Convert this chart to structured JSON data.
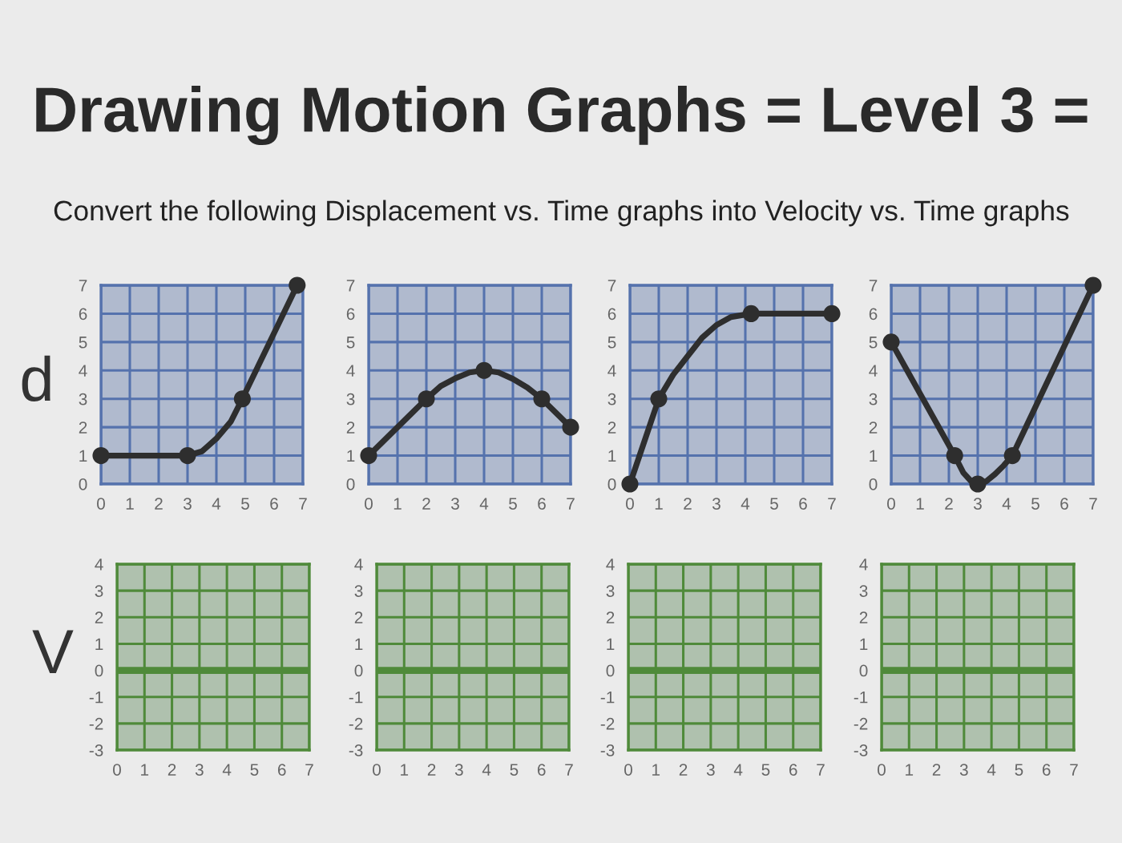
{
  "chart_data": [
    {
      "type": "line",
      "title": "Drawing Motion Graphs = Level 3 =",
      "subtitle": "Convert the following Displacement vs. Time graphs into Velocity vs. Time graphs",
      "ylabel": "d",
      "series": [
        {
          "color": "#2e2e2e",
          "x": [
            0,
            3,
            3.5,
            4,
            4.5,
            4.9,
            6.8
          ],
          "values": [
            1,
            1,
            1.15,
            1.6,
            2.2,
            3,
            7
          ]
        },
        {
          "type": "scatter",
          "marker": "circle",
          "color": "#2e2e2e",
          "x": [
            0,
            3,
            4.9,
            6.8
          ],
          "values": [
            1,
            1,
            3,
            7
          ]
        }
      ],
      "xlim": [
        0,
        7
      ],
      "ylim": [
        0,
        7
      ],
      "xticks": [
        0,
        1,
        2,
        3,
        4,
        5,
        6,
        7
      ],
      "yticks": [
        0,
        1,
        2,
        3,
        4,
        5,
        6,
        7
      ],
      "grid": true,
      "line_style": "solid"
    },
    {
      "type": "line",
      "series": [
        {
          "color": "#2e2e2e",
          "x": [
            0,
            2,
            2.5,
            3,
            3.5,
            4,
            4.5,
            5,
            5.5,
            6,
            7
          ],
          "values": [
            1,
            3,
            3.45,
            3.72,
            3.93,
            4,
            3.93,
            3.7,
            3.4,
            3,
            2
          ]
        },
        {
          "type": "scatter",
          "marker": "circle",
          "color": "#2e2e2e",
          "x": [
            0,
            2,
            4,
            6,
            7
          ],
          "values": [
            1,
            3,
            4,
            3,
            2
          ]
        }
      ],
      "xlim": [
        0,
        7
      ],
      "ylim": [
        0,
        7
      ],
      "xticks": [
        0,
        1,
        2,
        3,
        4,
        5,
        6,
        7
      ],
      "yticks": [
        0,
        1,
        2,
        3,
        4,
        5,
        6,
        7
      ],
      "grid": true,
      "line_style": "solid"
    },
    {
      "type": "line",
      "series": [
        {
          "color": "#2e2e2e",
          "x": [
            0,
            1,
            1.5,
            2,
            2.5,
            3,
            3.5,
            4.2,
            7
          ],
          "values": [
            0,
            3,
            3.85,
            4.5,
            5.15,
            5.6,
            5.88,
            6,
            6
          ]
        },
        {
          "type": "scatter",
          "marker": "circle",
          "color": "#2e2e2e",
          "x": [
            0,
            1,
            4.2,
            7
          ],
          "values": [
            0,
            3,
            6,
            6
          ]
        }
      ],
      "xlim": [
        0,
        7
      ],
      "ylim": [
        0,
        7
      ],
      "xticks": [
        0,
        1,
        2,
        3,
        4,
        5,
        6,
        7
      ],
      "yticks": [
        0,
        1,
        2,
        3,
        4,
        5,
        6,
        7
      ],
      "grid": true,
      "line_style": "solid"
    },
    {
      "type": "line",
      "series": [
        {
          "color": "#2e2e2e",
          "x": [
            0,
            2.2,
            2.5,
            2.75,
            3,
            3.3,
            3.6,
            3.9,
            4.2,
            7
          ],
          "values": [
            5,
            1,
            0.4,
            0.12,
            0,
            0.1,
            0.35,
            0.65,
            1,
            7
          ]
        },
        {
          "type": "scatter",
          "marker": "circle",
          "color": "#2e2e2e",
          "x": [
            0,
            2.2,
            3,
            4.2,
            7
          ],
          "values": [
            5,
            1,
            0,
            1,
            7
          ]
        }
      ],
      "xlim": [
        0,
        7
      ],
      "ylim": [
        0,
        7
      ],
      "xticks": [
        0,
        1,
        2,
        3,
        4,
        5,
        6,
        7
      ],
      "yticks": [
        0,
        1,
        2,
        3,
        4,
        5,
        6,
        7
      ],
      "grid": true,
      "line_style": "solid"
    },
    {
      "type": "line",
      "ylabel": "V",
      "xlim": [
        0,
        7
      ],
      "ylim": [
        -3,
        4
      ],
      "xticks": [
        0,
        1,
        2,
        3,
        4,
        5,
        6,
        7
      ],
      "yticks": [
        -3,
        -2,
        -1,
        0,
        1,
        2,
        3,
        4
      ],
      "grid": true,
      "ref_lines": [
        {
          "axis": "y",
          "value": 0,
          "color": "#4f8a3a"
        }
      ]
    },
    {
      "type": "line",
      "xlim": [
        0,
        7
      ],
      "ylim": [
        -3,
        4
      ],
      "xticks": [
        0,
        1,
        2,
        3,
        4,
        5,
        6,
        7
      ],
      "yticks": [
        -3,
        -2,
        -1,
        0,
        1,
        2,
        3,
        4
      ],
      "grid": true,
      "ref_lines": [
        {
          "axis": "y",
          "value": 0,
          "color": "#4f8a3a"
        }
      ]
    },
    {
      "type": "line",
      "xlim": [
        0,
        7
      ],
      "ylim": [
        -3,
        4
      ],
      "xticks": [
        0,
        1,
        2,
        3,
        4,
        5,
        6,
        7
      ],
      "yticks": [
        -3,
        -2,
        -1,
        0,
        1,
        2,
        3,
        4
      ],
      "grid": true,
      "ref_lines": [
        {
          "axis": "y",
          "value": 0,
          "color": "#4f8a3a"
        }
      ]
    },
    {
      "type": "line",
      "xlim": [
        0,
        7
      ],
      "ylim": [
        -3,
        4
      ],
      "xticks": [
        0,
        1,
        2,
        3,
        4,
        5,
        6,
        7
      ],
      "yticks": [
        -3,
        -2,
        -1,
        0,
        1,
        2,
        3,
        4
      ],
      "grid": true,
      "ref_lines": [
        {
          "axis": "y",
          "value": 0,
          "color": "#4f8a3a"
        }
      ]
    }
  ]
}
